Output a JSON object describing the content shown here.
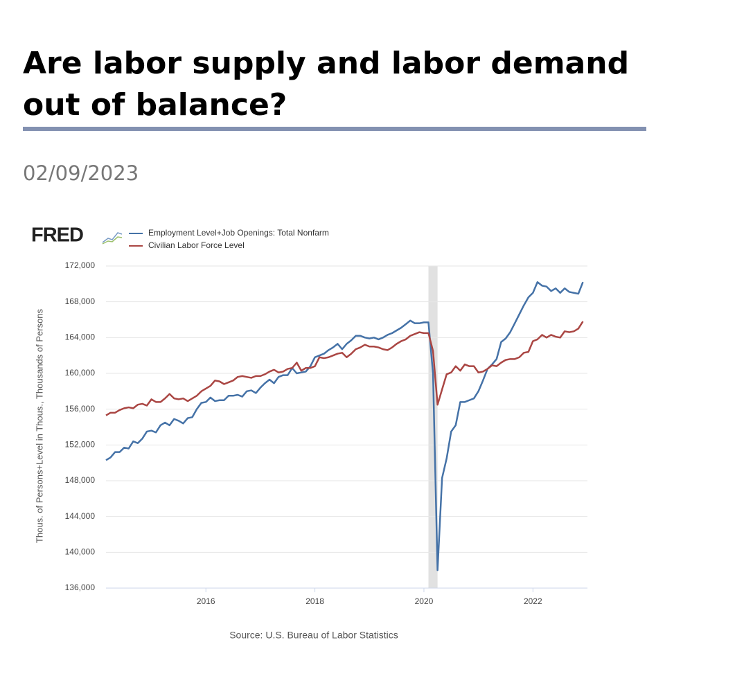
{
  "header": {
    "title": "Are labor supply and labor demand out of balance?",
    "date": "02/09/2023"
  },
  "chart_data": {
    "type": "line",
    "logo": "FRED",
    "y_label": "Thous. of Persons+Level in Thous., Thousands of Persons",
    "source": "Source: U.S. Bureau of Labor Statistics",
    "x": [
      2014.167,
      2014.25,
      2014.333,
      2014.417,
      2014.5,
      2014.583,
      2014.667,
      2014.75,
      2014.833,
      2014.917,
      2015,
      2015.083,
      2015.167,
      2015.25,
      2015.333,
      2015.417,
      2015.5,
      2015.583,
      2015.667,
      2015.75,
      2015.833,
      2015.917,
      2016,
      2016.083,
      2016.167,
      2016.25,
      2016.333,
      2016.417,
      2016.5,
      2016.583,
      2016.667,
      2016.75,
      2016.833,
      2016.917,
      2017,
      2017.083,
      2017.167,
      2017.25,
      2017.333,
      2017.417,
      2017.5,
      2017.583,
      2017.667,
      2017.75,
      2017.833,
      2017.917,
      2018,
      2018.083,
      2018.167,
      2018.25,
      2018.333,
      2018.417,
      2018.5,
      2018.583,
      2018.667,
      2018.75,
      2018.833,
      2018.917,
      2019,
      2019.083,
      2019.167,
      2019.25,
      2019.333,
      2019.417,
      2019.5,
      2019.583,
      2019.667,
      2019.75,
      2019.833,
      2019.917,
      2020,
      2020.083,
      2020.167,
      2020.25,
      2020.333,
      2020.417,
      2020.5,
      2020.583,
      2020.667,
      2020.75,
      2020.833,
      2020.917,
      2021,
      2021.083,
      2021.167,
      2021.25,
      2021.333,
      2021.417,
      2021.5,
      2021.583,
      2021.667,
      2021.75,
      2021.833,
      2021.917,
      2022,
      2022.083,
      2022.167,
      2022.25,
      2022.333,
      2022.417,
      2022.5,
      2022.583,
      2022.667,
      2022.75,
      2022.833,
      2022.917
    ],
    "series": [
      {
        "name": "Employment Level+Job Openings: Total Nonfarm",
        "color": "#4572a7",
        "values": [
          150300,
          150600,
          151200,
          151200,
          151700,
          151600,
          152400,
          152200,
          152700,
          153500,
          153600,
          153400,
          154200,
          154500,
          154200,
          154900,
          154700,
          154400,
          155000,
          155100,
          156000,
          156700,
          156800,
          157300,
          156900,
          157000,
          157000,
          157500,
          157500,
          157600,
          157400,
          158000,
          158100,
          157800,
          158400,
          158900,
          159300,
          158900,
          159600,
          159800,
          159800,
          160600,
          160000,
          160100,
          160200,
          160800,
          161800,
          162000,
          162200,
          162600,
          162900,
          163300,
          162700,
          163300,
          163700,
          164200,
          164200,
          164000,
          163900,
          164000,
          163800,
          164000,
          164300,
          164500,
          164800,
          165100,
          165500,
          165900,
          165600,
          165600,
          165700,
          165700,
          160000,
          138000,
          148300,
          150500,
          153500,
          154200,
          156800,
          156800,
          157000,
          157200,
          158000,
          159200,
          160500,
          161000,
          161600,
          163500,
          163900,
          164600,
          165600,
          166600,
          167600,
          168500,
          169000,
          170200,
          169800,
          169700,
          169200,
          169500,
          169000,
          169500,
          169100,
          169000,
          168900,
          170200
        ]
      },
      {
        "name": "Civilian Labor Force Level",
        "color": "#aa4643",
        "values": [
          155300,
          155600,
          155600,
          155900,
          156100,
          156200,
          156100,
          156500,
          156600,
          156400,
          157100,
          156800,
          156800,
          157200,
          157700,
          157200,
          157100,
          157200,
          156900,
          157200,
          157500,
          158000,
          158300,
          158600,
          159200,
          159100,
          158800,
          159000,
          159200,
          159600,
          159700,
          159600,
          159500,
          159700,
          159700,
          159900,
          160200,
          160400,
          160100,
          160200,
          160500,
          160600,
          161200,
          160300,
          160600,
          160600,
          160800,
          161800,
          161700,
          161800,
          162000,
          162200,
          162300,
          161800,
          162200,
          162700,
          162900,
          163200,
          163000,
          163000,
          162900,
          162700,
          162600,
          162900,
          163300,
          163600,
          163800,
          164200,
          164400,
          164600,
          164500,
          164500,
          162500,
          156500,
          158200,
          159900,
          160100,
          160800,
          160300,
          161000,
          160800,
          160800,
          160100,
          160200,
          160500,
          160900,
          160800,
          161200,
          161500,
          161600,
          161600,
          161800,
          162300,
          162400,
          163600,
          163800,
          164300,
          164000,
          164300,
          164100,
          164000,
          164700,
          164600,
          164700,
          165000,
          165800
        ]
      }
    ],
    "xlim": [
      2014.167,
      2023.0
    ],
    "xticks": [
      2016,
      2018,
      2020,
      2022
    ],
    "ylim": [
      136000,
      172000
    ],
    "yticks": [
      {
        "value": 136000,
        "label": "136,000"
      },
      {
        "value": 140000,
        "label": "140,000"
      },
      {
        "value": 144000,
        "label": "144,000"
      },
      {
        "value": 148000,
        "label": "148,000"
      },
      {
        "value": 152000,
        "label": "152,000"
      },
      {
        "value": 156000,
        "label": "156,000"
      },
      {
        "value": 160000,
        "label": "160,000"
      },
      {
        "value": 164000,
        "label": "164,000"
      },
      {
        "value": 168000,
        "label": "168,000"
      },
      {
        "value": 172000,
        "label": "172,000"
      }
    ],
    "shaded_ranges": [
      [
        2020.083,
        2020.25
      ]
    ],
    "shade_color": "#e1e1e1",
    "grid": true,
    "legend": "top-left"
  }
}
